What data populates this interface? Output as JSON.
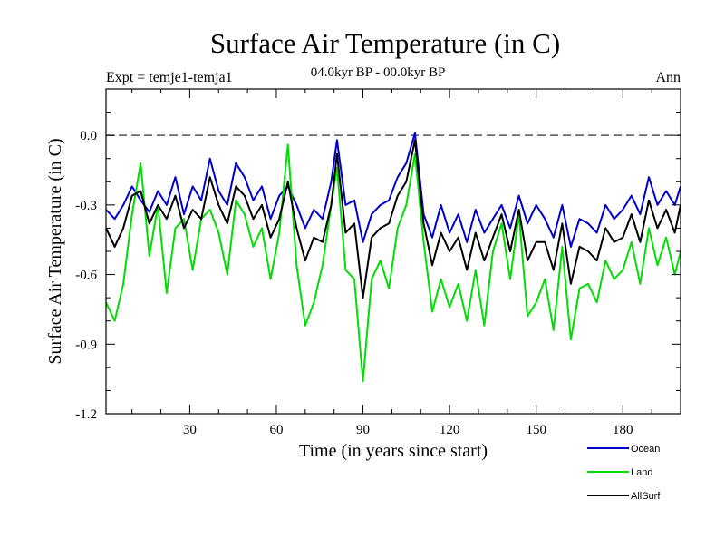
{
  "chart_data": {
    "type": "line",
    "title": "Surface Air Temperature (in C)",
    "subtitle": "04.0kyr BP - 00.0kyr BP",
    "experiment": "Expt = temje1-temja1",
    "season": "Ann",
    "xlabel": "Time (in years since start)",
    "ylabel": "Surface Air Temperature (in C)",
    "xlim": [
      1,
      200
    ],
    "ylim": [
      -1.2,
      0.2
    ],
    "x_ticks": [
      30,
      60,
      90,
      120,
      150,
      180
    ],
    "x_tick_labels": [
      "30",
      "60",
      "90",
      "120",
      "150",
      "180"
    ],
    "y_ticks": [
      -1.2,
      -0.9,
      -0.6,
      -0.3,
      0.0
    ],
    "y_tick_labels": [
      "-1.2",
      "-0.9",
      "-0.6",
      "-0.3",
      "0.0"
    ],
    "reference_line": 0.0,
    "legend_position": "bottom-right, below plot",
    "x": [
      1,
      4,
      7,
      10,
      13,
      16,
      19,
      22,
      25,
      28,
      31,
      34,
      37,
      40,
      43,
      46,
      49,
      52,
      55,
      58,
      61,
      64,
      67,
      70,
      73,
      76,
      79,
      81,
      84,
      87,
      90,
      93,
      96,
      99,
      102,
      105,
      108,
      111,
      114,
      117,
      120,
      123,
      126,
      129,
      132,
      135,
      138,
      141,
      144,
      147,
      150,
      153,
      156,
      159,
      162,
      165,
      168,
      171,
      174,
      177,
      180,
      183,
      186,
      189,
      192,
      195,
      198,
      200
    ],
    "series": [
      {
        "name": "Ocean",
        "color": "#0000cc",
        "values": [
          -0.32,
          -0.36,
          -0.3,
          -0.22,
          -0.28,
          -0.33,
          -0.24,
          -0.3,
          -0.18,
          -0.34,
          -0.22,
          -0.28,
          -0.1,
          -0.24,
          -0.3,
          -0.12,
          -0.18,
          -0.28,
          -0.22,
          -0.36,
          -0.26,
          -0.22,
          -0.3,
          -0.4,
          -0.32,
          -0.36,
          -0.2,
          -0.02,
          -0.3,
          -0.28,
          -0.46,
          -0.34,
          -0.3,
          -0.28,
          -0.18,
          -0.12,
          0.01,
          -0.34,
          -0.44,
          -0.3,
          -0.42,
          -0.34,
          -0.46,
          -0.32,
          -0.42,
          -0.36,
          -0.3,
          -0.4,
          -0.26,
          -0.38,
          -0.3,
          -0.36,
          -0.44,
          -0.3,
          -0.48,
          -0.36,
          -0.38,
          -0.42,
          -0.3,
          -0.36,
          -0.32,
          -0.26,
          -0.34,
          -0.18,
          -0.3,
          -0.24,
          -0.3,
          -0.22
        ]
      },
      {
        "name": "Land",
        "color": "#00dd00",
        "values": [
          -0.72,
          -0.8,
          -0.64,
          -0.34,
          -0.12,
          -0.52,
          -0.3,
          -0.68,
          -0.4,
          -0.36,
          -0.58,
          -0.36,
          -0.32,
          -0.42,
          -0.6,
          -0.28,
          -0.34,
          -0.48,
          -0.4,
          -0.62,
          -0.42,
          -0.04,
          -0.56,
          -0.82,
          -0.72,
          -0.56,
          -0.3,
          -0.14,
          -0.58,
          -0.62,
          -1.06,
          -0.62,
          -0.54,
          -0.66,
          -0.4,
          -0.3,
          -0.08,
          -0.46,
          -0.76,
          -0.62,
          -0.74,
          -0.64,
          -0.8,
          -0.58,
          -0.82,
          -0.5,
          -0.38,
          -0.62,
          -0.34,
          -0.78,
          -0.72,
          -0.62,
          -0.84,
          -0.48,
          -0.88,
          -0.66,
          -0.64,
          -0.72,
          -0.54,
          -0.62,
          -0.58,
          -0.46,
          -0.64,
          -0.4,
          -0.56,
          -0.44,
          -0.6,
          -0.5
        ]
      },
      {
        "name": "AllSurf",
        "color": "#000000",
        "values": [
          -0.4,
          -0.48,
          -0.4,
          -0.26,
          -0.24,
          -0.38,
          -0.3,
          -0.36,
          -0.26,
          -0.4,
          -0.32,
          -0.36,
          -0.18,
          -0.3,
          -0.38,
          -0.22,
          -0.26,
          -0.36,
          -0.3,
          -0.44,
          -0.36,
          -0.2,
          -0.4,
          -0.54,
          -0.44,
          -0.46,
          -0.3,
          -0.08,
          -0.42,
          -0.38,
          -0.7,
          -0.44,
          -0.4,
          -0.38,
          -0.26,
          -0.2,
          -0.02,
          -0.38,
          -0.56,
          -0.42,
          -0.5,
          -0.44,
          -0.58,
          -0.42,
          -0.54,
          -0.44,
          -0.34,
          -0.5,
          -0.32,
          -0.54,
          -0.46,
          -0.46,
          -0.58,
          -0.38,
          -0.64,
          -0.48,
          -0.5,
          -0.54,
          -0.4,
          -0.46,
          -0.44,
          -0.34,
          -0.46,
          -0.28,
          -0.4,
          -0.32,
          -0.42,
          -0.3
        ]
      }
    ]
  }
}
